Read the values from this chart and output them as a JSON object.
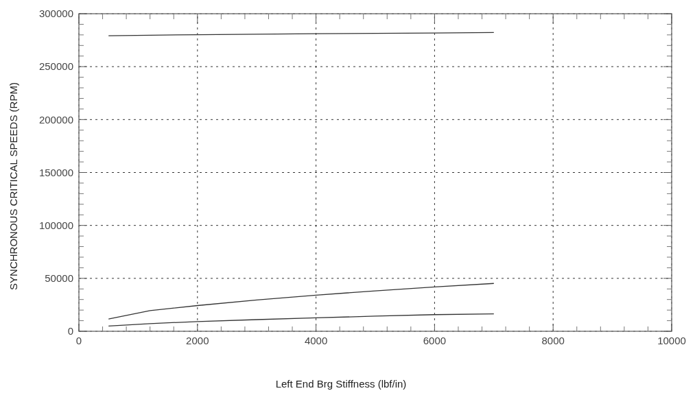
{
  "chart_data": {
    "type": "line",
    "xlabel": "Left End Brg Stiffness  (lbf/in)",
    "ylabel": "SYNCHRONOUS CRITICAL SPEEDS (RPM)",
    "xlim": [
      0,
      10000
    ],
    "ylim": [
      0,
      300000
    ],
    "xticks": [
      0,
      2000,
      4000,
      6000,
      8000,
      10000
    ],
    "yticks": [
      0,
      50000,
      100000,
      150000,
      200000,
      250000,
      300000
    ],
    "grid": true,
    "line_style": "solid",
    "series": [
      {
        "color": "#333333",
        "x": [
          500,
          1200,
          2000,
          3000,
          4000,
          5000,
          6000,
          7000
        ],
        "values": [
          279200,
          279700,
          280200,
          280700,
          281100,
          281500,
          281800,
          282200
        ]
      },
      {
        "color": "#333333",
        "x": [
          500,
          1200,
          2000,
          3000,
          4000,
          5000,
          6000,
          7000
        ],
        "values": [
          11600,
          19500,
          24300,
          29500,
          34100,
          38200,
          41900,
          45200
        ]
      },
      {
        "color": "#333333",
        "x": [
          500,
          1200,
          2000,
          3000,
          4000,
          5000,
          6000,
          7000
        ],
        "values": [
          4900,
          7200,
          9200,
          11000,
          12700,
          14300,
          15700,
          16400
        ]
      }
    ]
  }
}
